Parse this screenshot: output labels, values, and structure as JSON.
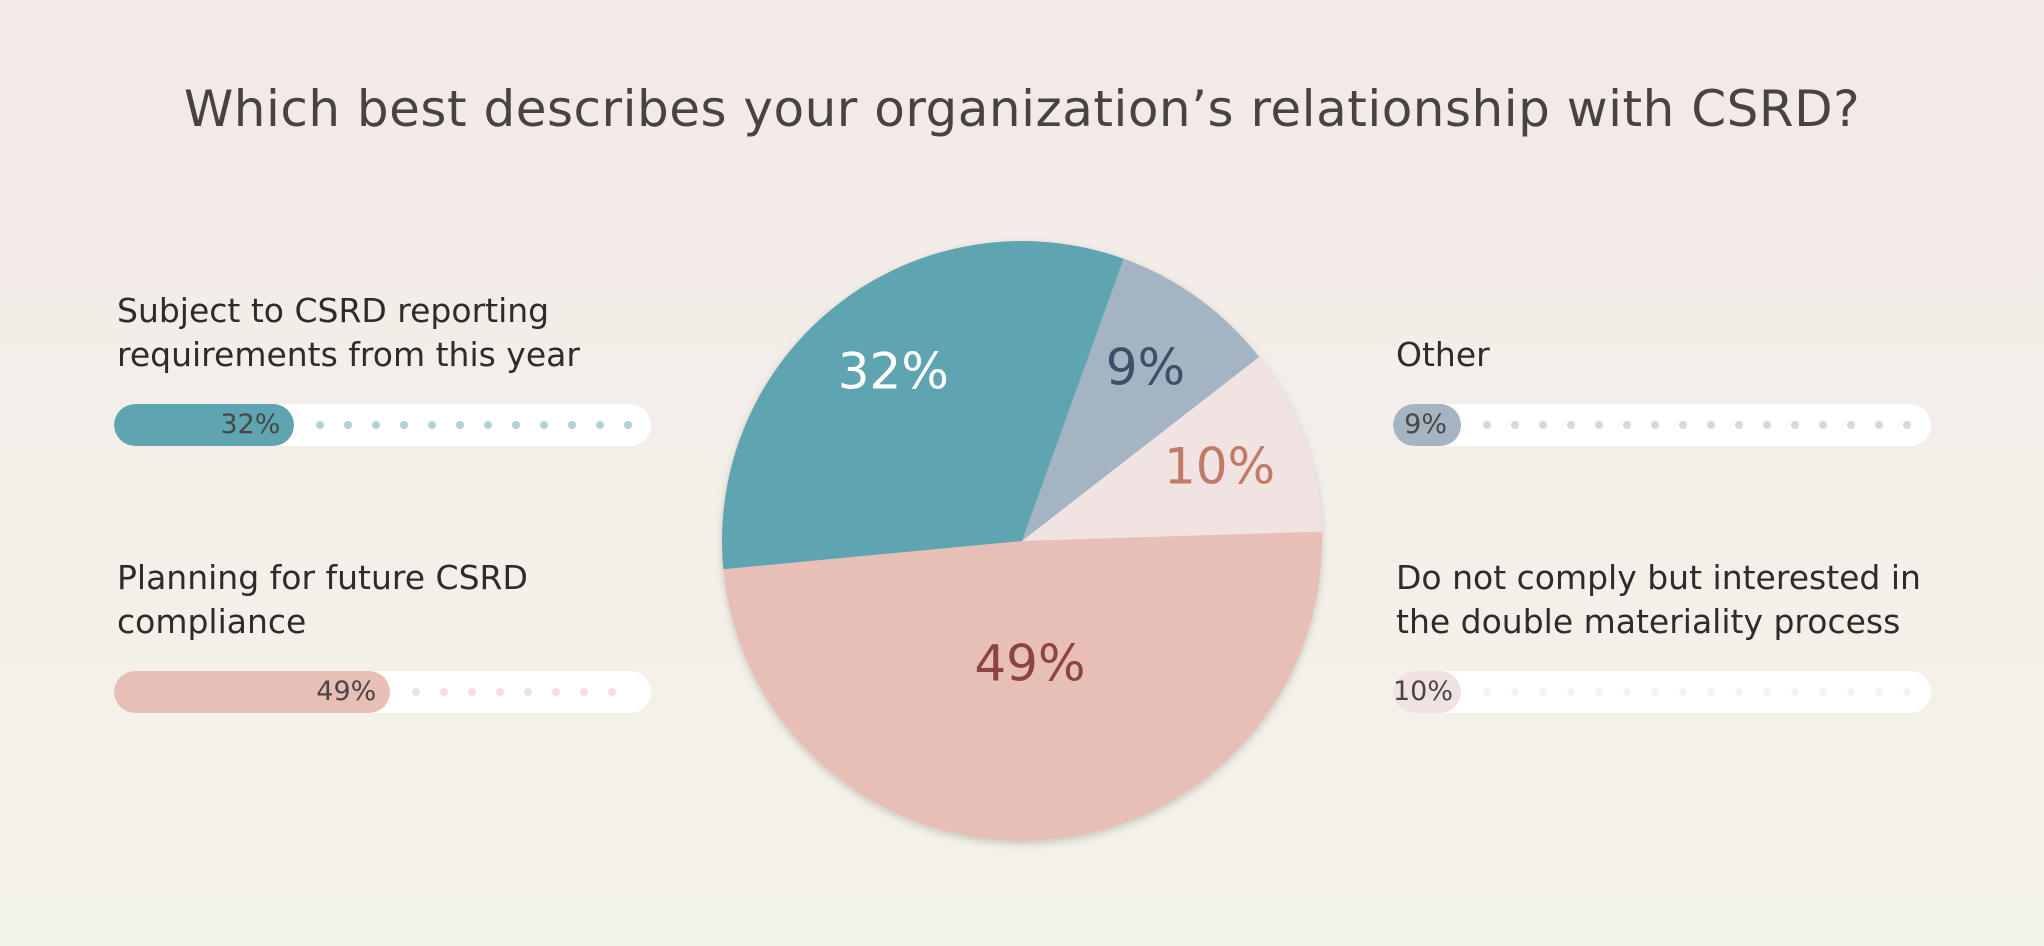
{
  "chart_data": {
    "type": "pie",
    "title": "Which best describes your organization’s relationship with CSRD?",
    "categories": [
      "Other",
      "Do not comply but interested in the double materiality process",
      "Planning for future CSRD compliance",
      "Subject to CSRD reporting requirements from this year"
    ],
    "values": [
      9,
      10,
      49,
      32
    ],
    "value_labels": [
      "9%",
      "10%",
      "49%",
      "32%"
    ],
    "colors": [
      "#a5b4c2",
      "#f1e3e1",
      "#e8bfb7",
      "#5ea5b1"
    ],
    "label_colors": [
      "#3d5068",
      "#c27a68",
      "#8a4540",
      "#ffffff"
    ],
    "start_angle": 19.8
  }
}
